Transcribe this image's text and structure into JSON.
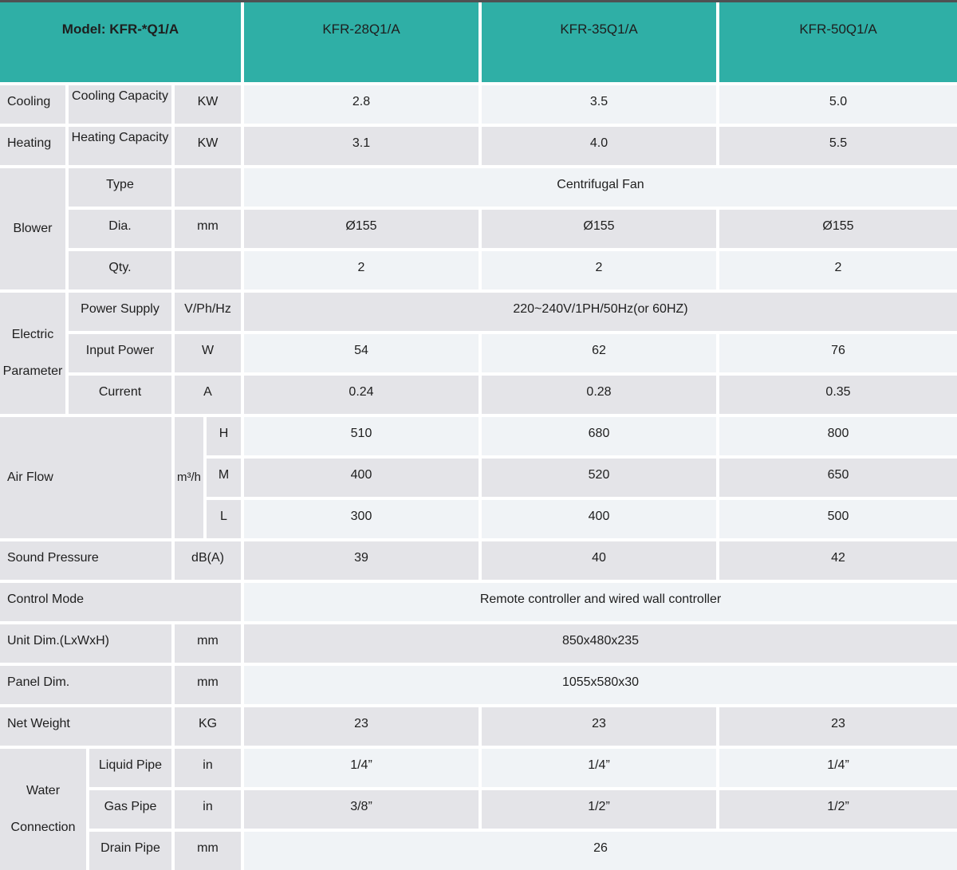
{
  "header": {
    "model": "Model: KFR-*Q1/A",
    "models": [
      "KFR-28Q1/A",
      "KFR-35Q1/A",
      "KFR-50Q1/A"
    ]
  },
  "colors": {
    "header_teal": "#2fafa6",
    "label_gray": "#e3e3e7",
    "row_dark": "#e4e4e8",
    "row_light": "#f0f3f6",
    "top_bar": "#4f5153"
  },
  "cooling": {
    "group": "Cooling",
    "label": "Cooling Capacity",
    "unit": "KW",
    "values": [
      "2.8",
      "3.5",
      "5.0"
    ]
  },
  "heating": {
    "group": "Heating",
    "label": "Heating Capacity",
    "unit": "KW",
    "values": [
      "3.1",
      "4.0",
      "5.5"
    ]
  },
  "blower": {
    "group": "Blower",
    "type": {
      "label": "Type",
      "unit": "",
      "value": "Centrifugal Fan"
    },
    "dia": {
      "label": "Dia.",
      "unit": "mm",
      "values": [
        "Ø155",
        "Ø155",
        "Ø155"
      ]
    },
    "qty": {
      "label": "Qty.",
      "unit": "",
      "values": [
        "2",
        "2",
        "2"
      ]
    }
  },
  "electric": {
    "group_line1": "Electric",
    "group_line2": "Parameter",
    "power_supply": {
      "label": "Power Supply",
      "unit": "V/Ph/Hz",
      "value": "220~240V/1PH/50Hz(or 60HZ)"
    },
    "input_power": {
      "label": "Input Power",
      "unit": "W",
      "values": [
        "54",
        "62",
        "76"
      ]
    },
    "current": {
      "label": "Current",
      "unit": "A",
      "values": [
        "0.24",
        "0.28",
        "0.35"
      ]
    }
  },
  "air_flow": {
    "label": "Air Flow",
    "unit": "m³/h",
    "rows": [
      {
        "level": "H",
        "values": [
          "510",
          "680",
          "800"
        ]
      },
      {
        "level": "M",
        "values": [
          "400",
          "520",
          "650"
        ]
      },
      {
        "level": "L",
        "values": [
          "300",
          "400",
          "500"
        ]
      }
    ]
  },
  "sound_pressure": {
    "label": "Sound Pressure",
    "unit": "dB(A)",
    "values": [
      "39",
      "40",
      "42"
    ]
  },
  "control_mode": {
    "label": "Control Mode",
    "value": "Remote controller and wired wall controller"
  },
  "unit_dim": {
    "label": "Unit Dim.(LxWxH)",
    "unit": "mm",
    "value": "850x480x235"
  },
  "panel_dim": {
    "label": "Panel Dim.",
    "unit": "mm",
    "value": "1055x580x30"
  },
  "net_weight": {
    "label": "Net Weight",
    "unit": "KG",
    "values": [
      "23",
      "23",
      "23"
    ]
  },
  "water": {
    "group_line1": "Water",
    "group_line2": "Connection",
    "liquid": {
      "label": "Liquid Pipe",
      "unit": "in",
      "values": [
        "1/4”",
        "1/4”",
        "1/4”"
      ]
    },
    "gas": {
      "label": "Gas Pipe",
      "unit": "in",
      "values": [
        "3/8”",
        "1/2”",
        "1/2”"
      ]
    },
    "drain": {
      "label": "Drain Pipe",
      "unit": "mm",
      "value": "26"
    }
  }
}
